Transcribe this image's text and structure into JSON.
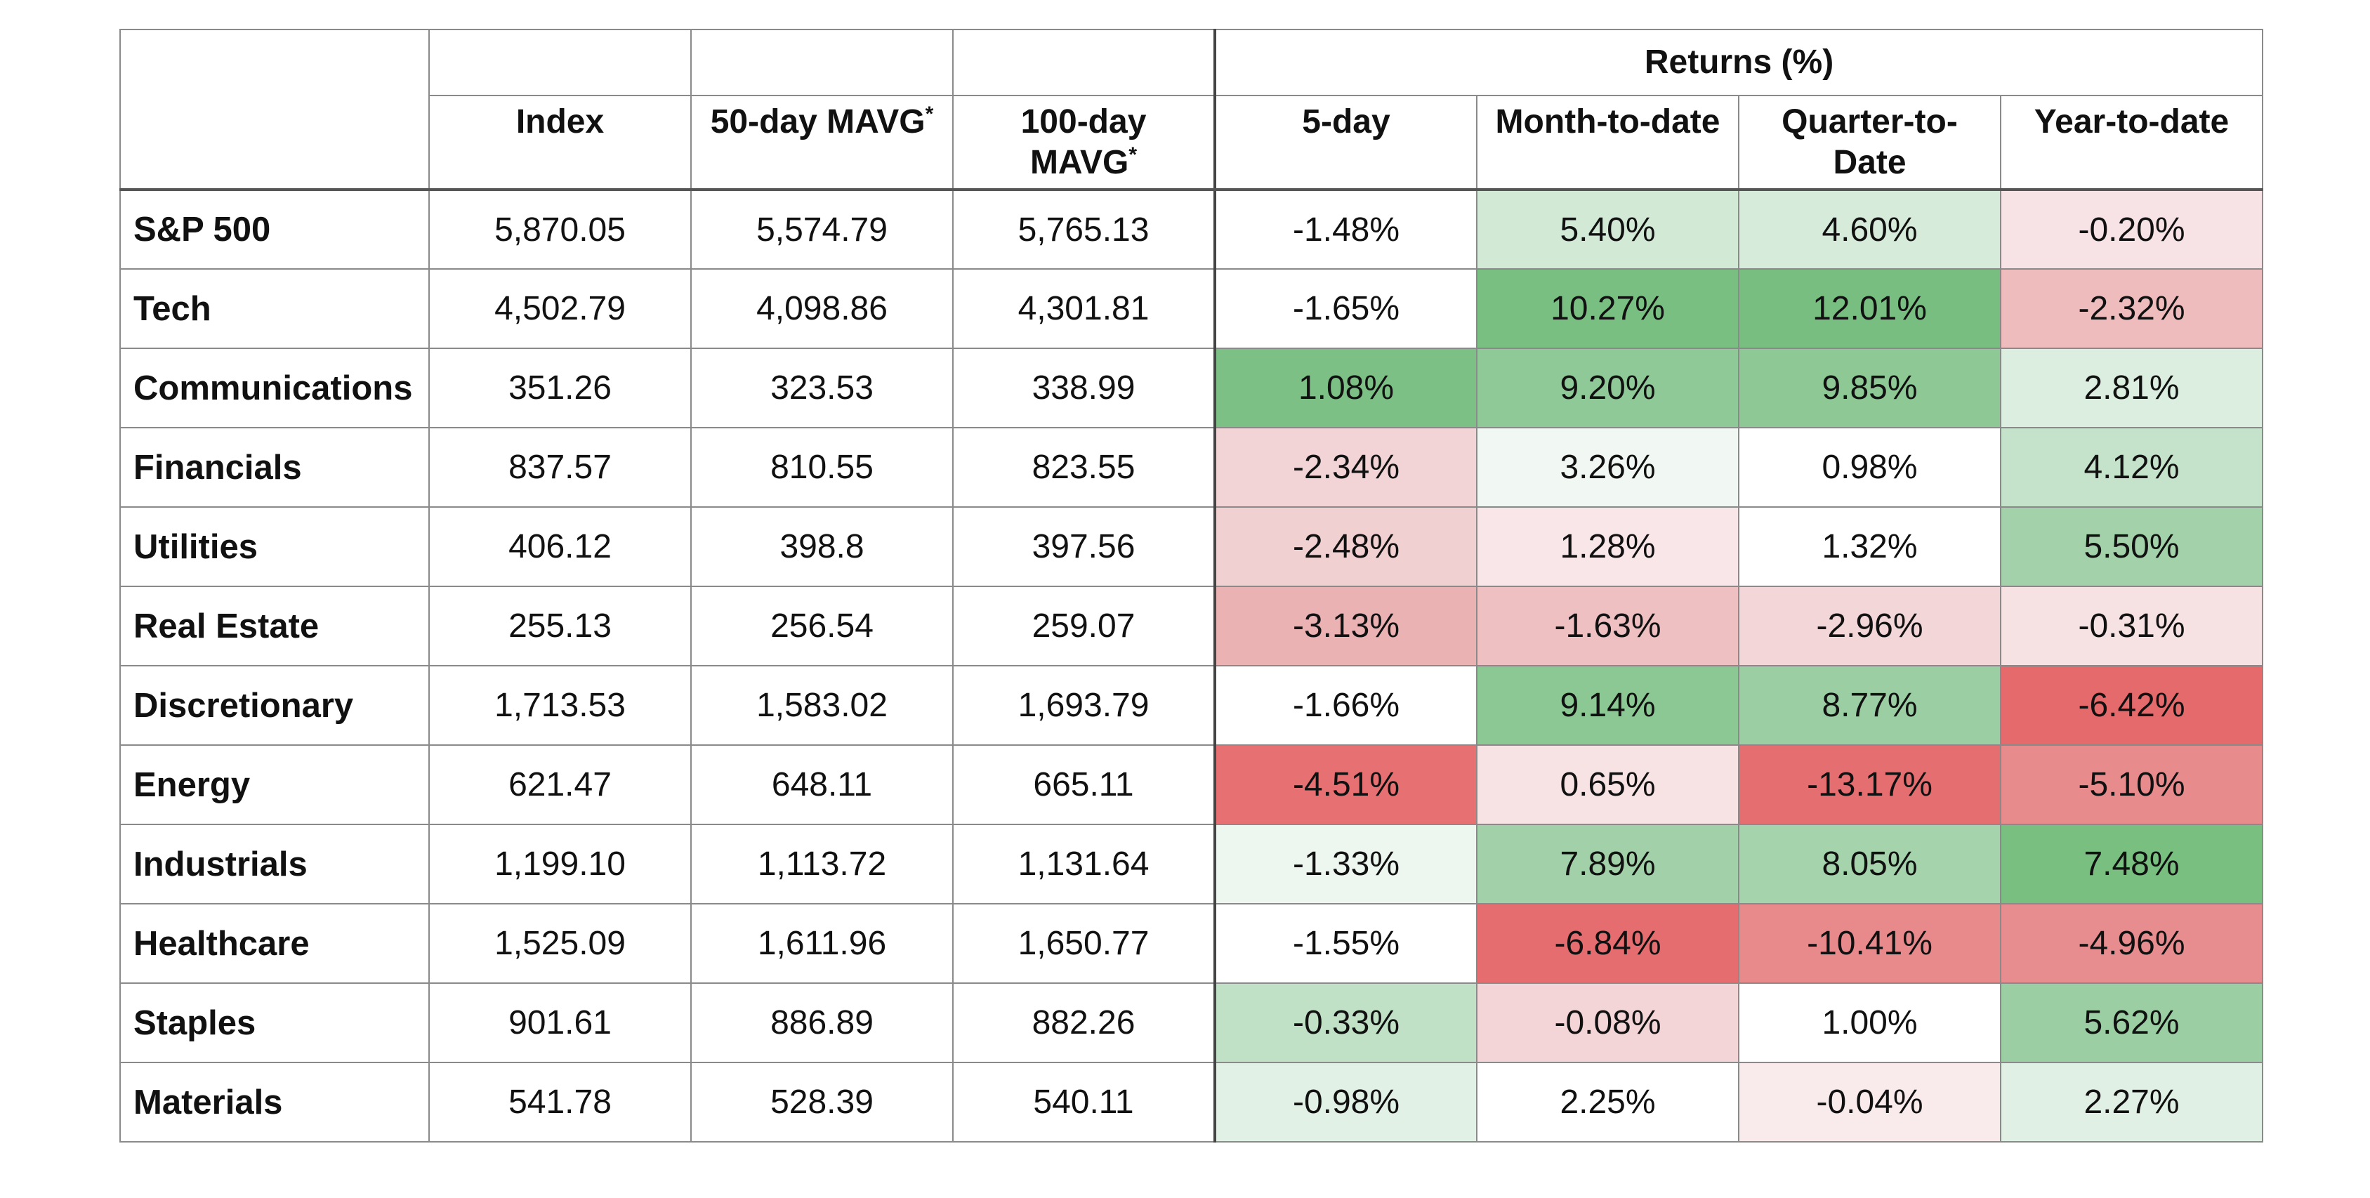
{
  "table": {
    "group_header": "Returns (%)",
    "headers": {
      "row_label": "",
      "index": "Index",
      "mavg50": "50-day MAVG",
      "mavg50_mark": "*",
      "mavg100_line1": "100-day",
      "mavg100_line2": "MAVG",
      "mavg100_mark": "*",
      "r5": "5-day",
      "mtd": "Month-to-date",
      "qtd_line1": "Quarter-to-",
      "qtd_line2": "Date",
      "ytd": "Year-to-date"
    },
    "rows": [
      {
        "label": "S&P 500",
        "index": "5,870.05",
        "mavg50": "5,574.79",
        "mavg100": "5,765.13",
        "r5": "-1.48%",
        "mtd": "5.40%",
        "qtd": "4.60%",
        "ytd": "-0.20%"
      },
      {
        "label": "Tech",
        "index": "4,502.79",
        "mavg50": "4,098.86",
        "mavg100": "4,301.81",
        "r5": "-1.65%",
        "mtd": "10.27%",
        "qtd": "12.01%",
        "ytd": "-2.32%"
      },
      {
        "label": "Communications",
        "index": "351.26",
        "mavg50": "323.53",
        "mavg100": "338.99",
        "r5": "1.08%",
        "mtd": "9.20%",
        "qtd": "9.85%",
        "ytd": "2.81%"
      },
      {
        "label": "Financials",
        "index": "837.57",
        "mavg50": "810.55",
        "mavg100": "823.55",
        "r5": "-2.34%",
        "mtd": "3.26%",
        "qtd": "0.98%",
        "ytd": "4.12%"
      },
      {
        "label": "Utilities",
        "index": "406.12",
        "mavg50": "398.8",
        "mavg100": "397.56",
        "r5": "-2.48%",
        "mtd": "1.28%",
        "qtd": "1.32%",
        "ytd": "5.50%"
      },
      {
        "label": "Real Estate",
        "index": "255.13",
        "mavg50": "256.54",
        "mavg100": "259.07",
        "r5": "-3.13%",
        "mtd": "-1.63%",
        "qtd": "-2.96%",
        "ytd": "-0.31%"
      },
      {
        "label": "Discretionary",
        "index": "1,713.53",
        "mavg50": "1,583.02",
        "mavg100": "1,693.79",
        "r5": "-1.66%",
        "mtd": "9.14%",
        "qtd": "8.77%",
        "ytd": "-6.42%"
      },
      {
        "label": "Energy",
        "index": "621.47",
        "mavg50": "648.11",
        "mavg100": "665.11",
        "r5": "-4.51%",
        "mtd": "0.65%",
        "qtd": "-13.17%",
        "ytd": "-5.10%"
      },
      {
        "label": "Industrials",
        "index": "1,199.10",
        "mavg50": "1,113.72",
        "mavg100": "1,131.64",
        "r5": "-1.33%",
        "mtd": "7.89%",
        "qtd": "8.05%",
        "ytd": "7.48%"
      },
      {
        "label": "Healthcare",
        "index": "1,525.09",
        "mavg50": "1,611.96",
        "mavg100": "1,650.77",
        "r5": "-1.55%",
        "mtd": "-6.84%",
        "qtd": "-10.41%",
        "ytd": "-4.96%"
      },
      {
        "label": "Staples",
        "index": "901.61",
        "mavg50": "886.89",
        "mavg100": "882.26",
        "r5": "-0.33%",
        "mtd": "-0.08%",
        "qtd": "1.00%",
        "ytd": "5.62%"
      },
      {
        "label": "Materials",
        "index": "541.78",
        "mavg50": "528.39",
        "mavg100": "540.11",
        "r5": "-0.98%",
        "mtd": "2.25%",
        "qtd": "-0.04%",
        "ytd": "2.27%"
      }
    ],
    "cell_colors": [
      {
        "r5": "#ffffff",
        "mtd": "#d1e9d5",
        "qtd": "#d6ebda",
        "ytd": "#f7e3e5"
      },
      {
        "r5": "#ffffff",
        "mtd": "#79bf82",
        "qtd": "#78be81",
        "ytd": "#efbcbd"
      },
      {
        "r5": "#7dc086",
        "mtd": "#8fc997",
        "qtd": "#8dc895",
        "ytd": "#dbeedf"
      },
      {
        "r5": "#f2d4d7",
        "mtd": "#f1f7f3",
        "qtd": "#ffffff",
        "ytd": "#c4e3ca"
      },
      {
        "r5": "#f1d0d2",
        "mtd": "#f8e6e8",
        "qtd": "#ffffff",
        "ytd": "#a3d2aa"
      },
      {
        "r5": "#ebb2b4",
        "mtd": "#efc0c2",
        "qtd": "#f3d6d8",
        "ytd": "#f6e1e3"
      },
      {
        "r5": "#ffffff",
        "mtd": "#8cc894",
        "qtd": "#9bcea3",
        "ytd": "#e56a6c"
      },
      {
        "r5": "#e67072",
        "mtd": "#f7e2e4",
        "qtd": "#e56e70",
        "ytd": "#e88b8d"
      },
      {
        "r5": "#eef6f0",
        "mtd": "#a2d1a9",
        "qtd": "#a5d3ac",
        "ytd": "#78bf80"
      },
      {
        "r5": "#ffffff",
        "mtd": "#e56d6f",
        "qtd": "#e88a8c",
        "ytd": "#e88d8f"
      },
      {
        "r5": "#c0e1c6",
        "mtd": "#f3d5d8",
        "qtd": "#ffffff",
        "ytd": "#9bcea3"
      },
      {
        "r5": "#e2f1e5",
        "mtd": "#ffffff",
        "qtd": "#f9eaec",
        "ytd": "#e1f0e4"
      }
    ]
  }
}
